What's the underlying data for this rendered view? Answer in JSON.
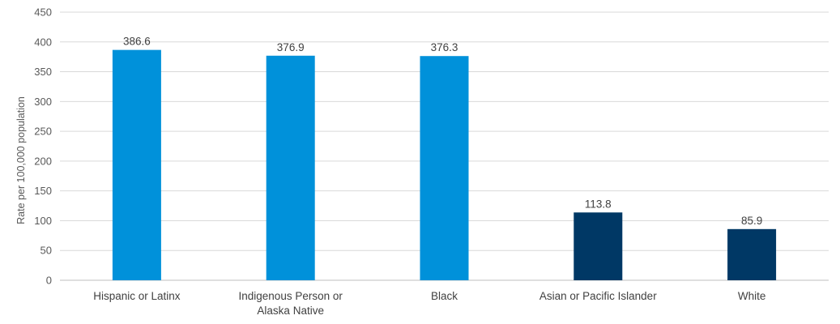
{
  "chart_data": {
    "type": "bar",
    "title": "",
    "xlabel": "",
    "ylabel": "Rate per 100,000 population",
    "ylim": [
      0,
      450
    ],
    "yticks": [
      0,
      50,
      100,
      150,
      200,
      250,
      300,
      350,
      400,
      450
    ],
    "grid": true,
    "legend": "none",
    "categories": [
      [
        "Hispanic or Latinx"
      ],
      [
        "Indigenous Person or",
        "Alaska Native"
      ],
      [
        "Black"
      ],
      [
        "Asian or Pacific Islander"
      ],
      [
        "White"
      ]
    ],
    "values": [
      386.6,
      376.9,
      376.3,
      113.8,
      85.9
    ],
    "value_labels": [
      "386.6",
      "376.9",
      "376.3",
      "113.8",
      "85.9"
    ],
    "bar_colors": [
      "#0091da",
      "#0091da",
      "#0091da",
      "#003865",
      "#003865"
    ]
  }
}
